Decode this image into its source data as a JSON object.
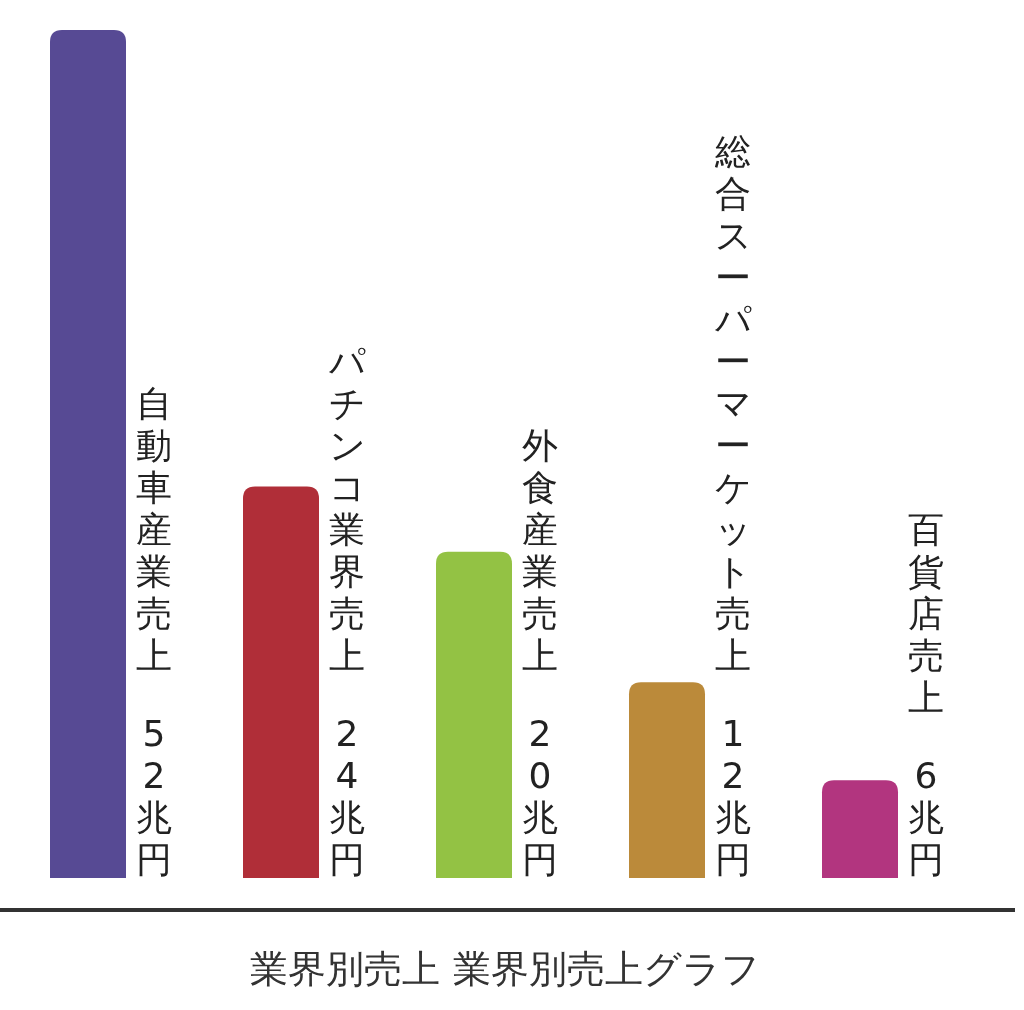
{
  "chart_data": {
    "type": "bar",
    "title": "業界別売上 業界別売上グラフ",
    "categories": [
      "自動車産業売上",
      "パチンコ業界売上",
      "外食産業売上",
      "総合スーパーマーケット売上",
      "百貨店売上"
    ],
    "values": [
      52,
      24,
      20,
      12,
      6
    ],
    "colors": [
      "#574a94",
      "#b02e38",
      "#93c244",
      "#bb8a3a",
      "#b2357f"
    ],
    "value_labels": [
      "52兆円",
      "24兆円",
      "20兆円",
      "12兆円",
      "6兆円"
    ],
    "legend": false,
    "grid": false
  }
}
